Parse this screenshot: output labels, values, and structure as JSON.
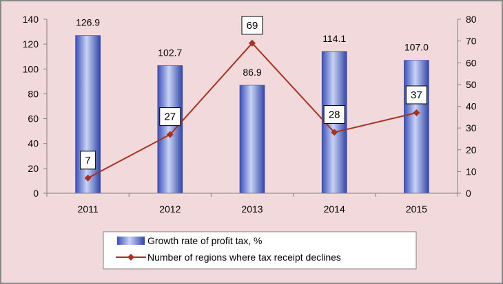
{
  "chart_data": {
    "type": "bar+line",
    "categories": [
      "2011",
      "2012",
      "2013",
      "2014",
      "2015"
    ],
    "series": [
      {
        "name": "Growth rate of profit tax, %",
        "type": "bar",
        "axis": "left",
        "values": [
          126.9,
          102.7,
          86.9,
          114.1,
          107.0
        ],
        "labels": [
          "126.9",
          "102.7",
          "86.9",
          "114.1",
          "107.0"
        ],
        "color": "#5a6fd6"
      },
      {
        "name": "Number of regions where tax receipt declines",
        "type": "line",
        "axis": "right",
        "values": [
          7,
          27,
          69,
          28,
          37
        ],
        "labels": [
          "7",
          "27",
          "69",
          "28",
          "37"
        ],
        "color": "#a8321f"
      }
    ],
    "y_left": {
      "min": 0,
      "max": 140,
      "ticks": [
        "0",
        "20",
        "40",
        "60",
        "80",
        "100",
        "120",
        "140"
      ]
    },
    "y_right": {
      "min": 0,
      "max": 80,
      "ticks": [
        "0",
        "10",
        "20",
        "30",
        "40",
        "50",
        "60",
        "70",
        "80"
      ]
    },
    "grid": false,
    "legend_position": "bottom-center",
    "background": "#f2d9dc"
  }
}
